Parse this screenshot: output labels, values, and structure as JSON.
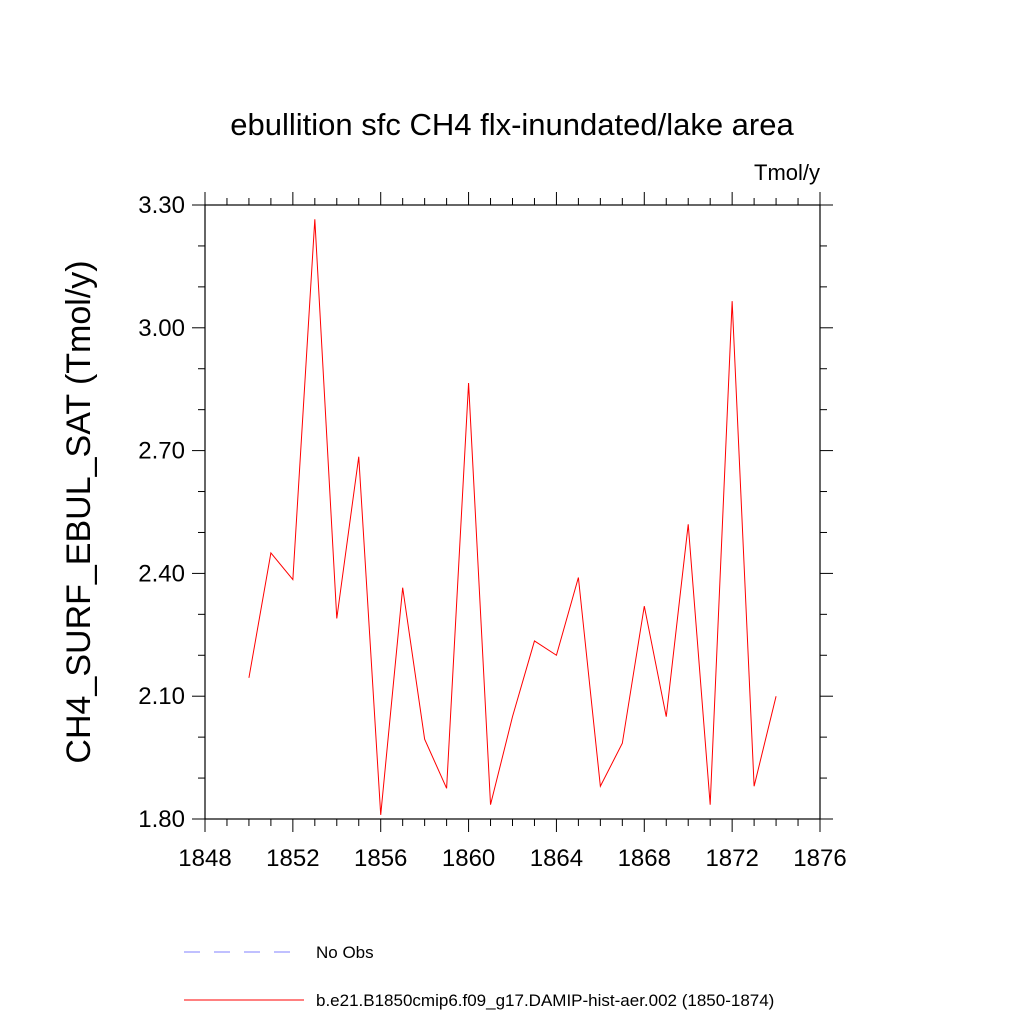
{
  "chart_data": {
    "type": "line",
    "title": "ebullition sfc CH4 flx-inundated/lake area",
    "units_label": "Tmol/y",
    "ylabel": "CH4_SURF_EBUL_SAT  (Tmol/y)",
    "xlabel": "",
    "xlim": [
      1848,
      1876
    ],
    "ylim": [
      1.8,
      3.3
    ],
    "x_ticks": [
      "1848",
      "1852",
      "1856",
      "1860",
      "1864",
      "1868",
      "1872",
      "1876"
    ],
    "y_ticks": [
      "1.80",
      "2.10",
      "2.40",
      "2.70",
      "3.00",
      "3.30"
    ],
    "grid": false,
    "series": [
      {
        "name": "b.e21.B1850cmip6.f09_g17.DAMIP-hist-aer.002 (1850-1874)",
        "color": "#ff0000",
        "style": "solid",
        "x": [
          1850,
          1851,
          1852,
          1853,
          1854,
          1855,
          1856,
          1857,
          1858,
          1859,
          1860,
          1861,
          1862,
          1863,
          1864,
          1865,
          1866,
          1867,
          1868,
          1869,
          1870,
          1871,
          1872,
          1873,
          1874
        ],
        "y": [
          2.145,
          2.45,
          2.385,
          3.265,
          2.29,
          2.685,
          1.81,
          2.365,
          1.995,
          1.875,
          2.865,
          1.835,
          2.05,
          2.235,
          2.2,
          2.39,
          1.88,
          1.985,
          2.32,
          2.05,
          2.52,
          1.835,
          3.065,
          1.88,
          2.1
        ]
      }
    ],
    "legend": [
      {
        "label": "No Obs",
        "color": "#8080ff",
        "style": "dashed"
      },
      {
        "label": "b.e21.B1850cmip6.f09_g17.DAMIP-hist-aer.002 (1850-1874)",
        "color": "#ff0000",
        "style": "solid"
      }
    ]
  }
}
